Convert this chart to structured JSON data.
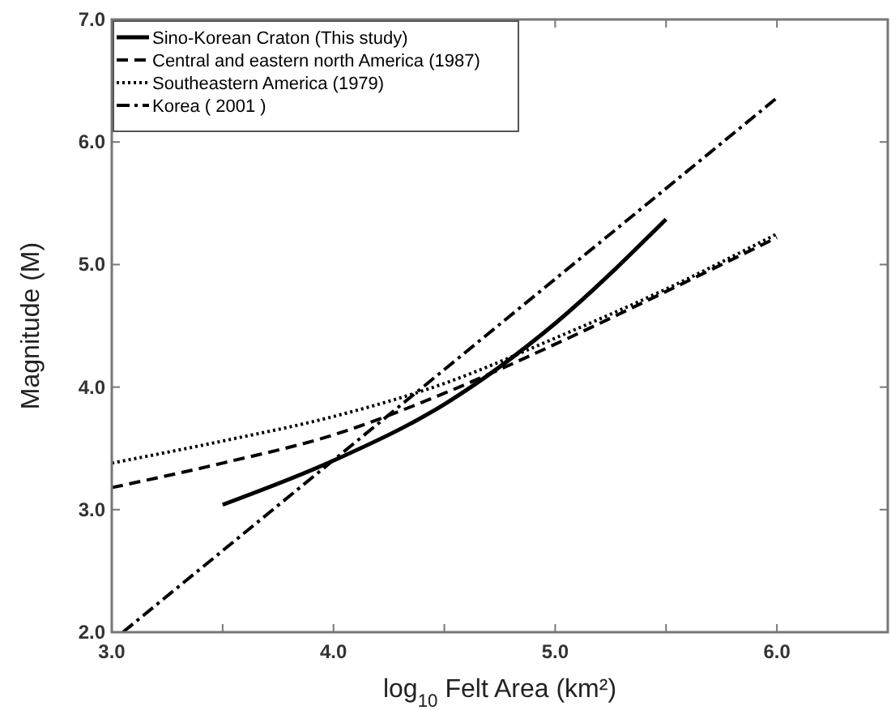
{
  "chart_data": {
    "type": "line",
    "xlabel": "log$_{10}$ Felt Area (km²)",
    "ylabel": "Magnitude (M)",
    "xlim": [
      3,
      6.5
    ],
    "xticks": [
      {
        "value": 3,
        "label": "3.0"
      },
      {
        "value": 3.5,
        "label": null
      },
      {
        "value": 4,
        "label": "4.0"
      },
      {
        "value": 4.5,
        "label": null
      },
      {
        "value": 5,
        "label": "5.0"
      },
      {
        "value": 5.5,
        "label": null
      },
      {
        "value": 6,
        "label": "6.0"
      }
    ],
    "ylim": [
      2,
      7
    ],
    "yticks": [
      {
        "value": 2,
        "label": "2.0"
      },
      {
        "value": 3,
        "label": "3.0"
      },
      {
        "value": 4,
        "label": "4.0"
      },
      {
        "value": 5,
        "label": "5.0"
      },
      {
        "value": 6,
        "label": "6.0"
      },
      {
        "value": 7,
        "label": "7.0"
      }
    ],
    "grid": false,
    "legend": "top left",
    "marker": "none",
    "series": [
      {
        "name": "Sino-Korean Craton (This study)",
        "color": "#000000",
        "line_style": "solid",
        "x": [
          3.5,
          4,
          4.5,
          5,
          5.5
        ],
        "values": [
          3.04,
          3.4,
          3.86,
          4.52,
          5.37
        ]
      },
      {
        "name": "Central and eastern north America (1987)",
        "color": "#000000",
        "line_style": "dashed",
        "x": [
          3,
          3.5,
          4,
          4.5,
          5,
          5.5,
          6
        ],
        "values": [
          3.18,
          3.38,
          3.61,
          3.95,
          4.35,
          4.78,
          5.22
        ]
      },
      {
        "name": "Southeastern America (1979)",
        "color": "#000000",
        "line_style": "dotted",
        "x": [
          3,
          3.5,
          4,
          4.5,
          5,
          5.5,
          6
        ],
        "values": [
          3.38,
          3.56,
          3.76,
          4.03,
          4.4,
          4.8,
          5.25
        ]
      },
      {
        "name": "Korea ( 2001 )",
        "color": "#000000",
        "line_style": "dashdot",
        "x": [
          3.05,
          6
        ],
        "values": [
          2,
          6.36
        ]
      }
    ]
  }
}
